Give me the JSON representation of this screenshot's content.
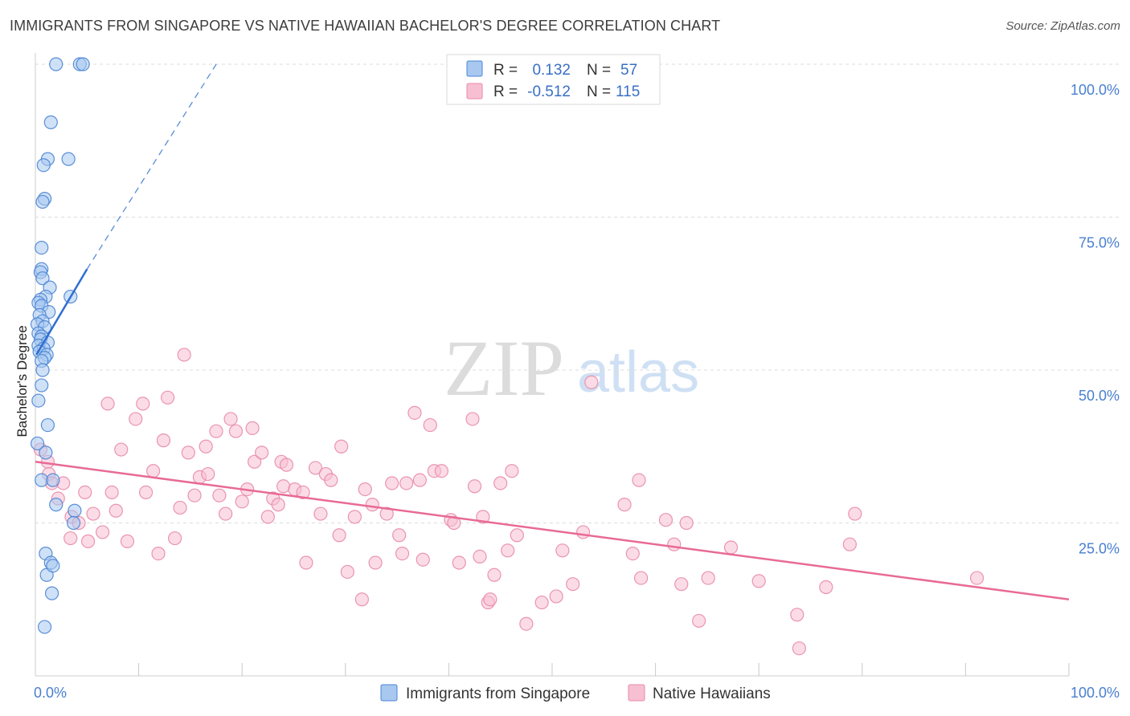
{
  "title": "IMMIGRANTS FROM SINGAPORE VS NATIVE HAWAIIAN BACHELOR'S DEGREE CORRELATION CHART",
  "source": "Source: ZipAtlas.com",
  "watermark": {
    "zip": "ZIP",
    "atlas": "atlas"
  },
  "chart_data": {
    "type": "scatter",
    "ylabel": "Bachelor's Degree",
    "xlim": [
      0,
      100
    ],
    "ylim": [
      0,
      105
    ],
    "x_tick_labels": [
      {
        "value": 0,
        "label": "0.0%"
      },
      {
        "value": 100,
        "label": "100.0%"
      }
    ],
    "x_minor_ticks": [
      10,
      20,
      30,
      40,
      50,
      60,
      70,
      80,
      90,
      100
    ],
    "y_ticks": [
      {
        "value": 25,
        "label": "25.0%"
      },
      {
        "value": 50,
        "label": "50.0%"
      },
      {
        "value": 75,
        "label": "75.0%"
      },
      {
        "value": 100,
        "label": "100.0%"
      }
    ],
    "grid": "horizontal dashed",
    "colors": {
      "blue_fill": "#a8c8f0",
      "blue_stroke": "#4a84d4",
      "blue_line": "#2e6fd0",
      "pink_fill": "#f7c0d2",
      "pink_stroke": "#e88aa8",
      "pink_line": "#e86a96"
    },
    "stats": [
      {
        "r_label": "R =",
        "r_value": "0.132",
        "n_label": "N =",
        "n_value": "57"
      },
      {
        "r_label": "R =",
        "r_value": "-0.512",
        "n_label": "N =",
        "n_value": "115"
      }
    ],
    "series": [
      {
        "name": "Immigrants from Singapore",
        "trend": {
          "x0": 0.1,
          "y0": 52.5,
          "x1": 5.0,
          "y1": 66.5,
          "x_dash_end": 17.5,
          "y_dash_end": 100
        },
        "points": [
          [
            2.0,
            100
          ],
          [
            4.3,
            100
          ],
          [
            4.6,
            100
          ],
          [
            1.5,
            90.5
          ],
          [
            3.2,
            84.5
          ],
          [
            1.2,
            84.5
          ],
          [
            0.8,
            83.5
          ],
          [
            0.9,
            78
          ],
          [
            0.7,
            77.5
          ],
          [
            0.6,
            70
          ],
          [
            0.6,
            66.5
          ],
          [
            0.5,
            66
          ],
          [
            0.7,
            65
          ],
          [
            1.4,
            63.5
          ],
          [
            3.4,
            62
          ],
          [
            1.0,
            62
          ],
          [
            0.5,
            61.5
          ],
          [
            0.3,
            61
          ],
          [
            0.6,
            60.5
          ],
          [
            1.3,
            59.5
          ],
          [
            0.4,
            59
          ],
          [
            0.7,
            58
          ],
          [
            0.2,
            57.5
          ],
          [
            0.9,
            57
          ],
          [
            0.3,
            56
          ],
          [
            0.6,
            55.5
          ],
          [
            0.5,
            55
          ],
          [
            1.2,
            54.5
          ],
          [
            0.3,
            54
          ],
          [
            0.8,
            53.5
          ],
          [
            0.4,
            53
          ],
          [
            1.1,
            52.5
          ],
          [
            0.9,
            52
          ],
          [
            0.6,
            51.5
          ],
          [
            0.7,
            50
          ],
          [
            0.6,
            47.5
          ],
          [
            0.3,
            45
          ],
          [
            1.2,
            41
          ],
          [
            0.2,
            38
          ],
          [
            1.0,
            36.5
          ],
          [
            0.6,
            32
          ],
          [
            1.7,
            32
          ],
          [
            2.0,
            28
          ],
          [
            3.8,
            27
          ],
          [
            3.7,
            25
          ],
          [
            1.0,
            20
          ],
          [
            1.1,
            16.5
          ],
          [
            1.5,
            18.5
          ],
          [
            1.7,
            18
          ],
          [
            1.6,
            13.5
          ],
          [
            0.9,
            8
          ]
        ]
      },
      {
        "name": "Native Hawaiians",
        "trend": {
          "x0": 0,
          "y0": 35.0,
          "x1": 100,
          "y1": 12.5
        },
        "points": [
          [
            0.5,
            37
          ],
          [
            1.2,
            35
          ],
          [
            1.3,
            33
          ],
          [
            1.6,
            31.5
          ],
          [
            2.2,
            29
          ],
          [
            2.7,
            31.5
          ],
          [
            3.4,
            22.5
          ],
          [
            3.5,
            26
          ],
          [
            4.2,
            25
          ],
          [
            4.8,
            30
          ],
          [
            5.1,
            22
          ],
          [
            5.6,
            26.5
          ],
          [
            6.5,
            23.5
          ],
          [
            7.4,
            30
          ],
          [
            7.8,
            27
          ],
          [
            8.3,
            37
          ],
          [
            8.9,
            22
          ],
          [
            7.0,
            44.5
          ],
          [
            9.7,
            42
          ],
          [
            10.4,
            44.5
          ],
          [
            10.7,
            30
          ],
          [
            11.4,
            33.5
          ],
          [
            11.9,
            20
          ],
          [
            12.4,
            38.5
          ],
          [
            12.8,
            45.5
          ],
          [
            13.5,
            22.5
          ],
          [
            14.0,
            27.5
          ],
          [
            14.4,
            52.5
          ],
          [
            14.8,
            36.5
          ],
          [
            15.4,
            29.5
          ],
          [
            15.9,
            32.5
          ],
          [
            16.5,
            37.5
          ],
          [
            16.7,
            33
          ],
          [
            17.5,
            40
          ],
          [
            17.8,
            29.5
          ],
          [
            18.4,
            26.5
          ],
          [
            18.9,
            42
          ],
          [
            19.4,
            40
          ],
          [
            20.0,
            28.5
          ],
          [
            20.5,
            30.5
          ],
          [
            21.0,
            40.5
          ],
          [
            21.2,
            35
          ],
          [
            21.9,
            36.5
          ],
          [
            22.5,
            26
          ],
          [
            23.0,
            29
          ],
          [
            23.5,
            28
          ],
          [
            23.8,
            35
          ],
          [
            24.0,
            31
          ],
          [
            24.3,
            34.5
          ],
          [
            25.1,
            30.5
          ],
          [
            25.9,
            30
          ],
          [
            26.2,
            18.5
          ],
          [
            27.1,
            34
          ],
          [
            27.6,
            26.5
          ],
          [
            28.1,
            33
          ],
          [
            28.6,
            32
          ],
          [
            29.4,
            23
          ],
          [
            29.6,
            37.5
          ],
          [
            30.2,
            17
          ],
          [
            30.9,
            26
          ],
          [
            31.6,
            12.5
          ],
          [
            31.9,
            30.5
          ],
          [
            32.6,
            28
          ],
          [
            32.9,
            18.5
          ],
          [
            34.0,
            26.5
          ],
          [
            34.5,
            31.5
          ],
          [
            35.2,
            23
          ],
          [
            35.5,
            20
          ],
          [
            35.9,
            31.5
          ],
          [
            36.7,
            43
          ],
          [
            37.2,
            32
          ],
          [
            37.5,
            19
          ],
          [
            38.2,
            41
          ],
          [
            38.6,
            33.5
          ],
          [
            39.3,
            33.5
          ],
          [
            40.2,
            25.5
          ],
          [
            40.5,
            25
          ],
          [
            41.0,
            18.5
          ],
          [
            42.3,
            42
          ],
          [
            42.5,
            31
          ],
          [
            43.0,
            19.5
          ],
          [
            43.3,
            26
          ],
          [
            43.8,
            12
          ],
          [
            44.0,
            12.5
          ],
          [
            44.4,
            16.5
          ],
          [
            45.0,
            31.5
          ],
          [
            45.7,
            20.5
          ],
          [
            46.1,
            33.5
          ],
          [
            46.6,
            23
          ],
          [
            47.5,
            8.5
          ],
          [
            49.0,
            12
          ],
          [
            50.4,
            13
          ],
          [
            51.0,
            20.5
          ],
          [
            52.0,
            15
          ],
          [
            53.0,
            23.5
          ],
          [
            53.8,
            48
          ],
          [
            57.0,
            28
          ],
          [
            57.8,
            20
          ],
          [
            58.4,
            32
          ],
          [
            58.6,
            16
          ],
          [
            61.0,
            25.5
          ],
          [
            61.8,
            21.5
          ],
          [
            62.5,
            15
          ],
          [
            63.0,
            25
          ],
          [
            64.2,
            9
          ],
          [
            65.1,
            16
          ],
          [
            67.3,
            21
          ],
          [
            70.0,
            15.5
          ],
          [
            73.7,
            10
          ],
          [
            73.9,
            4.5
          ],
          [
            76.5,
            14.5
          ],
          [
            78.8,
            21.5
          ],
          [
            79.3,
            26.5
          ],
          [
            91.1,
            16
          ]
        ]
      }
    ]
  }
}
